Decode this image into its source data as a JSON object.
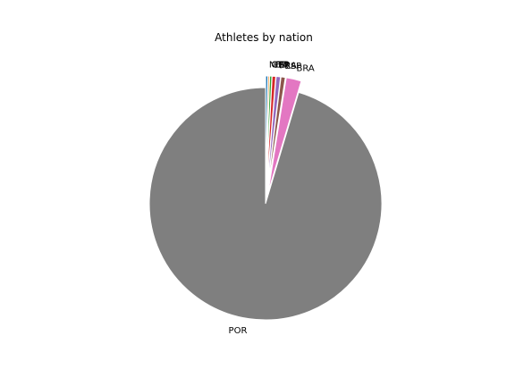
{
  "chart_data": {
    "type": "pie",
    "title": "Athletes by nation",
    "start_angle_deg": 90,
    "direction": "counterclockwise",
    "slices": [
      {
        "label": "POR",
        "value": 95.4,
        "color": "#7f7f7f",
        "exploded": false
      },
      {
        "label": "BRA",
        "value": 2.1,
        "color": "#e377c2",
        "exploded": true
      },
      {
        "label": "ESP",
        "value": 0.6,
        "color": "#8c564b",
        "exploded": true
      },
      {
        "label": "FRA",
        "value": 0.6,
        "color": "#9467bd",
        "exploded": true
      },
      {
        "label": "ITA",
        "value": 0.5,
        "color": "#d62728",
        "exploded": true
      },
      {
        "label": "GER",
        "value": 0.3,
        "color": "#2ca02c",
        "exploded": true
      },
      {
        "label": "NED",
        "value": 0.2,
        "color": "#ff7f0e",
        "exploded": true
      },
      {
        "label": "",
        "value": 0.3,
        "color": "#1f77b4",
        "exploded": true
      }
    ]
  }
}
